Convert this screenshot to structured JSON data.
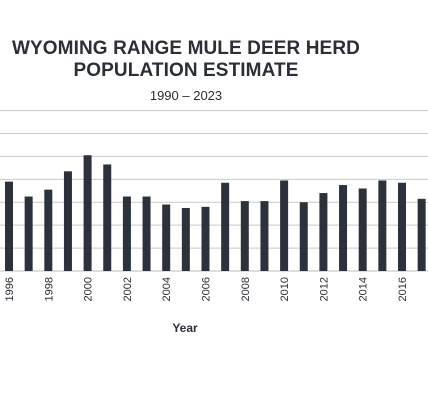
{
  "chart_data": {
    "type": "bar",
    "title_line1": "WYOMING RANGE MULE DEER HERD",
    "title_line2": "POPULATION ESTIMATE",
    "subtitle": "1990 – 2023",
    "xlabel": "Year",
    "ylabel": "",
    "grid": true,
    "bar_color": "#2b323b",
    "grid_color": "#c9c9c9",
    "categories": [
      "1996",
      "1997",
      "1998",
      "1999",
      "2000",
      "2001",
      "2002",
      "2003",
      "2004",
      "2005",
      "2006",
      "2007",
      "2008",
      "2009",
      "2010",
      "2011",
      "2012",
      "2013",
      "2014",
      "2015",
      "2016",
      "2017"
    ],
    "tick_labels": [
      "1996",
      "1998",
      "2000",
      "2002",
      "2004",
      "2006",
      "2008",
      "2010",
      "2012",
      "2014",
      "2016"
    ],
    "values": [
      39000,
      32500,
      35500,
      43500,
      50500,
      46500,
      32500,
      32500,
      29000,
      27500,
      28000,
      38500,
      30500,
      30500,
      39500,
      30000,
      34000,
      37500,
      36000,
      39500,
      38500,
      31500
    ],
    "ylim": [
      0,
      72000
    ],
    "gridlines": [
      10000,
      20000,
      30000,
      40000,
      50000,
      60000,
      70000
    ]
  }
}
